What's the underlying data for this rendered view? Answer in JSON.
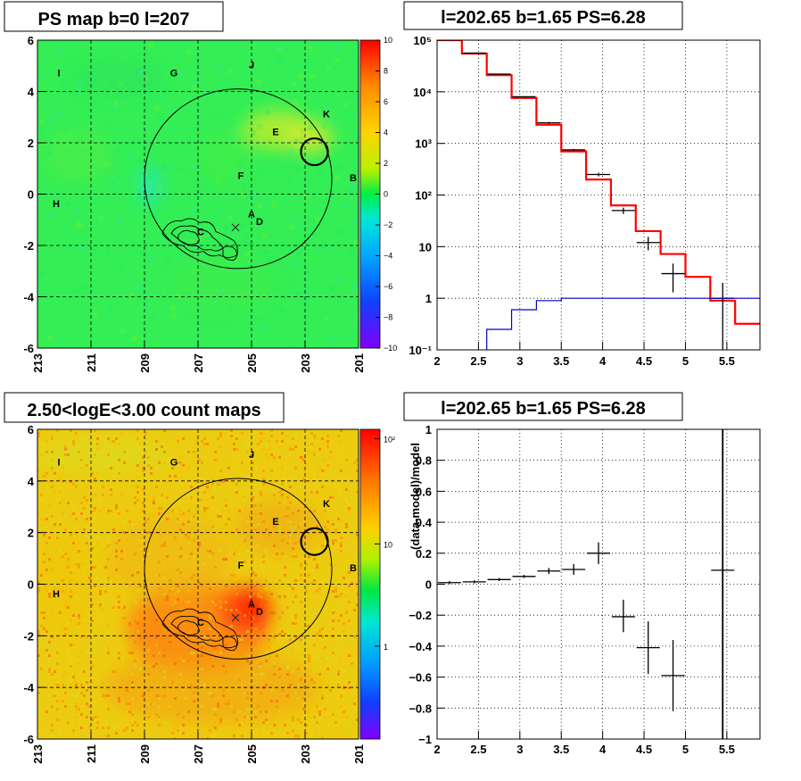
{
  "chart_data": [
    {
      "type": "heatmap",
      "title": "PS map b=0 l=207",
      "xlabel": "",
      "ylabel": "",
      "xlim": [
        213,
        201
      ],
      "ylim": [
        -6,
        6
      ],
      "x_ticks": [
        "213",
        "211",
        "209",
        "207",
        "205",
        "203",
        "201"
      ],
      "y_ticks": [
        "-6",
        "-4",
        "-2",
        "0",
        "2",
        "4",
        "6"
      ],
      "colorbar": {
        "scale": "linear",
        "range": [
          -10,
          10
        ],
        "ticks": [
          "10",
          "8",
          "6",
          "4",
          "2",
          "0",
          "−2",
          "−4",
          "−6",
          "−8",
          "−10"
        ]
      },
      "circle": {
        "l": 205.5,
        "b": 0.6,
        "radius": 3.5
      },
      "marked_source": {
        "l": 202.65,
        "b": 1.65,
        "radius": 0.5
      },
      "labels": [
        {
          "text": "I",
          "l": 212.2,
          "b": 4.6
        },
        {
          "text": "G",
          "l": 207.9,
          "b": 4.6
        },
        {
          "text": "J",
          "l": 205.0,
          "b": 4.9
        },
        {
          "text": "K",
          "l": 202.2,
          "b": 3.0
        },
        {
          "text": "E",
          "l": 204.1,
          "b": 2.3
        },
        {
          "text": "F",
          "l": 205.4,
          "b": 0.6
        },
        {
          "text": "B",
          "l": 201.2,
          "b": 0.5
        },
        {
          "text": "H",
          "l": 212.3,
          "b": -0.5
        },
        {
          "text": "A",
          "l": 205.0,
          "b": -0.9
        },
        {
          "text": "D",
          "l": 204.7,
          "b": -1.2
        },
        {
          "text": "C",
          "l": 206.9,
          "b": -1.6
        }
      ]
    },
    {
      "type": "line",
      "title": "l=202.65 b=1.65 PS=6.28",
      "xlabel": "",
      "ylabel": "",
      "xlim": [
        2,
        5.9
      ],
      "ylim": [
        0.1,
        100000
      ],
      "yscale": "log",
      "grid": true,
      "x_ticks": [
        "2",
        "2.5",
        "3",
        "3.5",
        "4",
        "4.5",
        "5",
        "5.5"
      ],
      "y_ticks": [
        "10⁻¹",
        "1",
        "10",
        "10²",
        "10³",
        "10⁴",
        "10⁵"
      ],
      "series": [
        {
          "color": "#ff0000",
          "kind": "step",
          "edges": [
            2.0,
            2.3,
            2.6,
            2.9,
            3.2,
            3.5,
            3.8,
            4.1,
            4.4,
            4.7,
            5.0,
            5.3,
            5.6,
            5.9
          ],
          "values": [
            100000,
            55000,
            21000,
            7600,
            2300,
            700,
            200,
            63,
            20,
            7.2,
            2.6,
            0.9,
            0.32
          ]
        },
        {
          "color": "#000000",
          "kind": "errorbar",
          "points": [
            {
              "x": 2.15,
              "y": 100000,
              "lo": 98000,
              "hi": 102000
            },
            {
              "x": 2.45,
              "y": 56000,
              "lo": 55000,
              "hi": 57000
            },
            {
              "x": 2.75,
              "y": 22000,
              "lo": 21500,
              "hi": 22500
            },
            {
              "x": 3.05,
              "y": 8000,
              "lo": 7800,
              "hi": 8200
            },
            {
              "x": 3.35,
              "y": 2500,
              "lo": 2400,
              "hi": 2600
            },
            {
              "x": 3.65,
              "y": 750,
              "lo": 720,
              "hi": 780
            },
            {
              "x": 3.95,
              "y": 250,
              "lo": 230,
              "hi": 270
            },
            {
              "x": 4.25,
              "y": 50,
              "lo": 43,
              "hi": 57
            },
            {
              "x": 4.55,
              "y": 12,
              "lo": 8.5,
              "hi": 15.5
            },
            {
              "x": 4.85,
              "y": 3,
              "lo": 1.3,
              "hi": 4.7
            },
            {
              "x": 5.45,
              "y": 1,
              "lo": 0.1,
              "hi": 2.0
            }
          ]
        },
        {
          "color": "#0000cc",
          "kind": "step",
          "edges": [
            2.6,
            2.9,
            3.2,
            3.5,
            3.8,
            5.9
          ],
          "values": [
            0.25,
            0.6,
            0.9,
            1.0,
            1.0
          ]
        }
      ]
    },
    {
      "type": "heatmap",
      "title": "2.50<logE<3.00 count maps",
      "xlabel": "",
      "ylabel": "",
      "xlim": [
        213,
        201
      ],
      "ylim": [
        -6,
        6
      ],
      "x_ticks": [
        "213",
        "211",
        "209",
        "207",
        "205",
        "203",
        "201"
      ],
      "y_ticks": [
        "-6",
        "-4",
        "-2",
        "0",
        "2",
        "4",
        "6"
      ],
      "colorbar": {
        "scale": "log",
        "ticks": [
          "10²",
          "10",
          "1"
        ]
      },
      "circle": {
        "l": 205.5,
        "b": 0.6,
        "radius": 3.5
      },
      "marked_source": {
        "l": 202.65,
        "b": 1.65,
        "radius": 0.5
      },
      "labels": [
        {
          "text": "I",
          "l": 212.2,
          "b": 4.6
        },
        {
          "text": "G",
          "l": 207.9,
          "b": 4.6
        },
        {
          "text": "J",
          "l": 205.0,
          "b": 4.9
        },
        {
          "text": "K",
          "l": 202.2,
          "b": 3.0
        },
        {
          "text": "E",
          "l": 204.1,
          "b": 2.3
        },
        {
          "text": "F",
          "l": 205.4,
          "b": 0.6
        },
        {
          "text": "B",
          "l": 201.2,
          "b": 0.5
        },
        {
          "text": "H",
          "l": 212.3,
          "b": -0.5
        },
        {
          "text": "A",
          "l": 205.0,
          "b": -0.9
        },
        {
          "text": "D",
          "l": 204.7,
          "b": -1.2
        },
        {
          "text": "C",
          "l": 206.9,
          "b": -1.6
        }
      ]
    },
    {
      "type": "scatter",
      "title": "l=202.65 b=1.65 PS=6.28",
      "xlabel": "",
      "ylabel": "(data-model)/model",
      "xlim": [
        2,
        5.9
      ],
      "ylim": [
        -1,
        1
      ],
      "grid": true,
      "x_ticks": [
        "2",
        "2.5",
        "3",
        "3.5",
        "4",
        "4.5",
        "5",
        "5.5"
      ],
      "y_ticks": [
        "−1",
        "−0.8",
        "−0.6",
        "−0.4",
        "−0.2",
        "0",
        "0.2",
        "0.4",
        "0.6",
        "0.8",
        "1"
      ],
      "series": [
        {
          "color": "#000000",
          "kind": "errorbar",
          "points": [
            {
              "x": 2.15,
              "y": 0.01,
              "lo": 0.0,
              "hi": 0.02
            },
            {
              "x": 2.45,
              "y": 0.015,
              "lo": 0.005,
              "hi": 0.025
            },
            {
              "x": 2.75,
              "y": 0.03,
              "lo": 0.02,
              "hi": 0.04
            },
            {
              "x": 3.05,
              "y": 0.05,
              "lo": 0.04,
              "hi": 0.06
            },
            {
              "x": 3.35,
              "y": 0.085,
              "lo": 0.065,
              "hi": 0.105
            },
            {
              "x": 3.65,
              "y": 0.095,
              "lo": 0.06,
              "hi": 0.13
            },
            {
              "x": 3.95,
              "y": 0.2,
              "lo": 0.13,
              "hi": 0.27
            },
            {
              "x": 4.25,
              "y": -0.21,
              "lo": -0.31,
              "hi": -0.1
            },
            {
              "x": 4.55,
              "y": -0.41,
              "lo": -0.58,
              "hi": -0.24
            },
            {
              "x": 4.85,
              "y": -0.59,
              "lo": -0.82,
              "hi": -0.36
            },
            {
              "x": 5.45,
              "y": 0.09,
              "lo": -1.0,
              "hi": 1.0
            }
          ]
        }
      ]
    }
  ]
}
